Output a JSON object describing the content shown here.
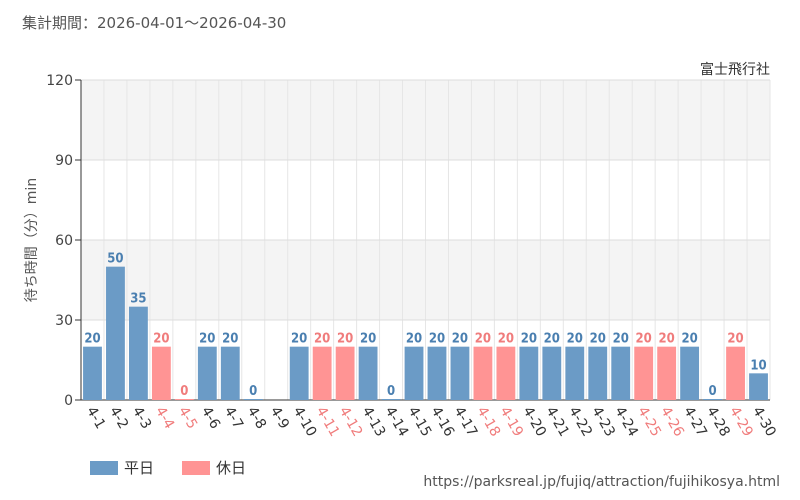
{
  "header": {
    "period": "集計期間：2026-04-01～2026-04-30"
  },
  "footer": {
    "url": "https://parksreal.jp/fujiq/attraction/fujihikosya.html"
  },
  "colors": {
    "weekday": "#6b9bc6",
    "holiday": "#ff9494",
    "weekday_text": "#4a7fb0",
    "holiday_text": "#f07c7c"
  },
  "chart_data": {
    "type": "bar",
    "title": "富士飛行社",
    "ylabel": "待ち時間（分）min",
    "xlabel": "",
    "ylim": [
      0,
      120
    ],
    "yticks": [
      0,
      30,
      60,
      90,
      120
    ],
    "grid": true,
    "legend_position": "bottom-left",
    "legend": [
      {
        "key": "weekday",
        "label": "平日"
      },
      {
        "key": "holiday",
        "label": "休日"
      }
    ],
    "categories": [
      "4-1",
      "4-2",
      "4-3",
      "4-4",
      "4-5",
      "4-6",
      "4-7",
      "4-8",
      "4-9",
      "4-10",
      "4-11",
      "4-12",
      "4-13",
      "4-14",
      "4-15",
      "4-16",
      "4-17",
      "4-18",
      "4-19",
      "4-20",
      "4-21",
      "4-22",
      "4-23",
      "4-24",
      "4-25",
      "4-26",
      "4-27",
      "4-28",
      "4-29",
      "4-30"
    ],
    "values": [
      20,
      50,
      35,
      20,
      0,
      20,
      20,
      0,
      null,
      20,
      20,
      20,
      20,
      0,
      20,
      20,
      20,
      20,
      20,
      20,
      20,
      20,
      20,
      20,
      20,
      20,
      20,
      0,
      20,
      10
    ],
    "day_type": [
      "weekday",
      "weekday",
      "weekday",
      "holiday",
      "holiday",
      "weekday",
      "weekday",
      "weekday",
      "weekday",
      "weekday",
      "holiday",
      "holiday",
      "weekday",
      "weekday",
      "weekday",
      "weekday",
      "weekday",
      "holiday",
      "holiday",
      "weekday",
      "weekday",
      "weekday",
      "weekday",
      "weekday",
      "holiday",
      "holiday",
      "weekday",
      "weekday",
      "holiday",
      "weekday"
    ]
  }
}
